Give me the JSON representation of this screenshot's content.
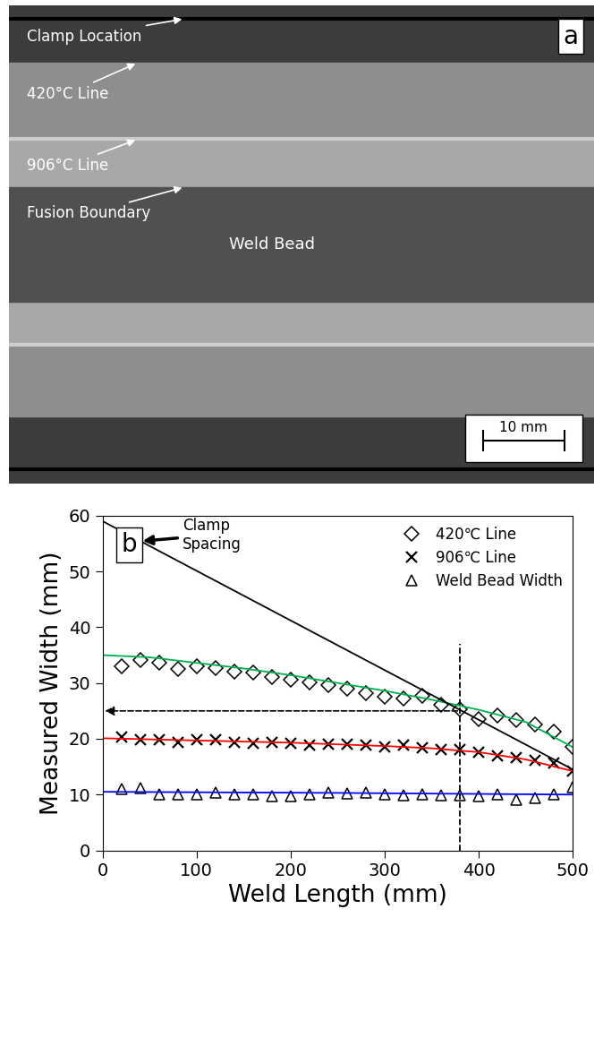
{
  "photo": {
    "panel_label": "a",
    "labels": [
      "Clamp Location",
      "420°C Line",
      "906°C Line",
      "Fusion Boundary"
    ],
    "center_label": "Weld Bead",
    "scale_bar": "10 mm"
  },
  "chart_data": {
    "type": "scatter",
    "x_label": "Weld Length (mm)",
    "y_label": "Measured Width (mm)",
    "annotations": [
      "Clamp\nSpacing",
      "b"
    ],
    "xlim": [
      0,
      500
    ],
    "xticks": [
      0,
      100,
      200,
      300,
      400,
      500
    ],
    "ylim": [
      0,
      60
    ],
    "yticks": [
      0,
      10,
      20,
      30,
      40,
      50,
      60
    ],
    "grid": false,
    "legend": "upper right",
    "series": [
      {
        "name": "420℃ Line",
        "type": "scatter",
        "marker": "diamond",
        "color": "#000000",
        "x": [
          20,
          40,
          60,
          80,
          100,
          120,
          140,
          160,
          180,
          200,
          220,
          240,
          260,
          280,
          300,
          320,
          340,
          360,
          380,
          400,
          420,
          440,
          460,
          480,
          500
        ],
        "values": [
          33,
          34.1,
          33.7,
          32.5,
          33,
          32.6,
          32,
          31.8,
          31.1,
          30.6,
          30.1,
          29.6,
          29,
          28.2,
          27.5,
          27.2,
          27.7,
          26.1,
          25.3,
          23.6,
          24.2,
          23.4,
          22.5,
          21.3,
          18.6
        ]
      },
      {
        "name": "906℃ Line",
        "type": "scatter",
        "marker": "x",
        "color": "#000000",
        "x": [
          20,
          40,
          60,
          80,
          100,
          120,
          140,
          160,
          180,
          200,
          220,
          240,
          260,
          280,
          300,
          320,
          340,
          360,
          380,
          400,
          420,
          440,
          460,
          480,
          500
        ],
        "values": [
          20.3,
          19.8,
          19.9,
          19.4,
          19.9,
          19.9,
          19.4,
          19.2,
          19.4,
          19.2,
          18.8,
          19,
          19,
          18.8,
          18.6,
          18.8,
          18.4,
          18,
          18.1,
          17.6,
          17,
          16.6,
          16.1,
          15.6,
          14.2
        ]
      },
      {
        "name": "Weld Bead Width",
        "type": "scatter",
        "marker": "triangle",
        "color": "#000000",
        "x": [
          20,
          40,
          60,
          80,
          100,
          120,
          140,
          160,
          180,
          200,
          220,
          240,
          260,
          280,
          300,
          320,
          340,
          360,
          380,
          400,
          420,
          440,
          460,
          480,
          500
        ],
        "values": [
          11,
          11.1,
          10,
          10.1,
          10,
          10.3,
          10.1,
          10.1,
          9.8,
          9.8,
          10,
          10.4,
          10.2,
          10.4,
          10,
          9.9,
          10,
          9.9,
          9.9,
          9.7,
          10,
          9.1,
          9.4,
          10.1,
          11.3
        ]
      },
      {
        "type": "line",
        "line_style": "solid",
        "color": "#00b050",
        "x": [
          0,
          50,
          100,
          150,
          200,
          250,
          300,
          350,
          400,
          450,
          500
        ],
        "values": [
          35,
          34.6,
          33.6,
          32.6,
          31.4,
          30,
          28.6,
          27,
          25.2,
          23,
          18.5
        ]
      },
      {
        "type": "line",
        "line_style": "solid",
        "color": "#ff0000",
        "x": [
          0,
          50,
          100,
          150,
          200,
          250,
          300,
          350,
          400,
          450,
          500
        ],
        "values": [
          20.1,
          19.9,
          19.7,
          19.5,
          19.3,
          19,
          18.7,
          18.3,
          17.6,
          16.3,
          14.2
        ]
      },
      {
        "type": "line",
        "line_style": "solid",
        "color": "#0000ff",
        "x": [
          0,
          250,
          500
        ],
        "values": [
          10.5,
          10.3,
          10
        ]
      },
      {
        "type": "line",
        "line_style": "solid",
        "color": "#000000",
        "x": [
          0,
          500
        ],
        "values": [
          59,
          14.5
        ]
      },
      {
        "type": "line",
        "line_style": "dashed",
        "color": "#000000",
        "x": [
          380,
          380
        ],
        "values": [
          0,
          37
        ]
      },
      {
        "type": "arrow",
        "line_style": "dashed",
        "color": "#000000",
        "x": [
          380,
          0
        ],
        "values": [
          25,
          25
        ]
      }
    ]
  }
}
